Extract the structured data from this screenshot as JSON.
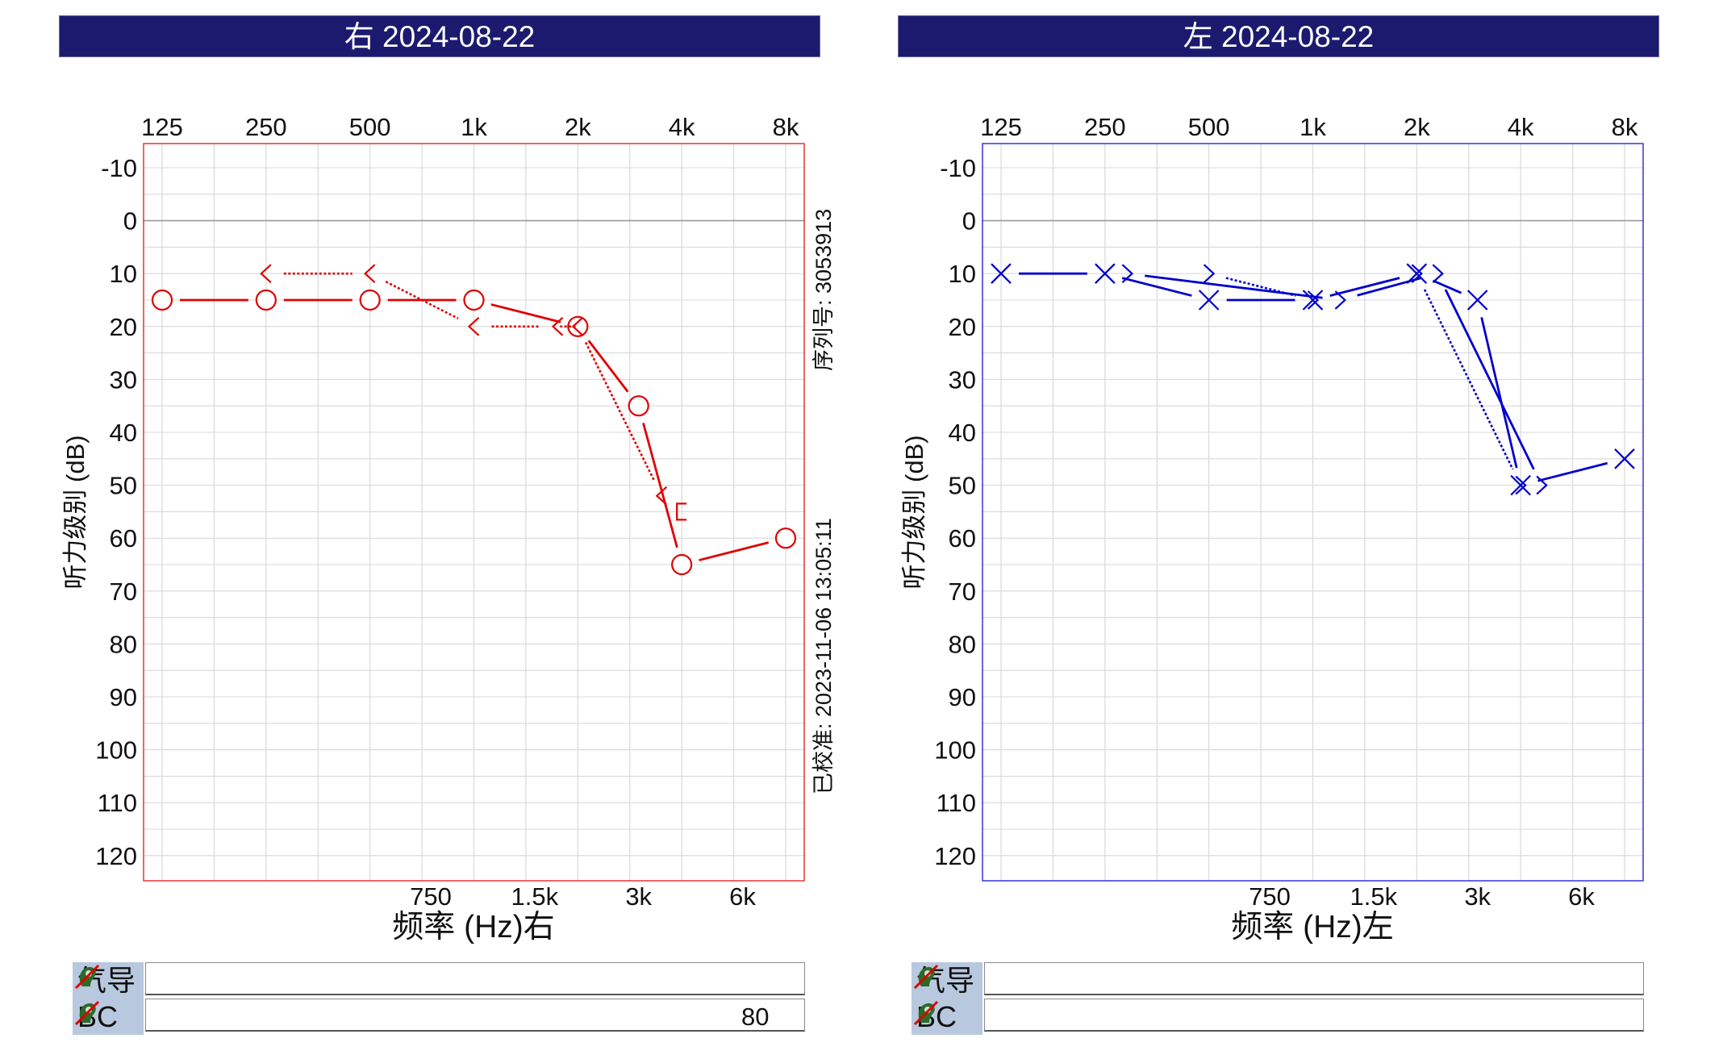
{
  "panels": [
    {
      "id": "right",
      "header": "右 2024-08-22",
      "color": "#e00000",
      "grid_color": "#d9d9d9",
      "zero_line_color": "#9a9a9a",
      "freq_top_labels": [
        "125",
        "250",
        "500",
        "1k",
        "2k",
        "4k",
        "8k"
      ],
      "freq_bottom_labels": [
        "750",
        "1.5k",
        "3k",
        "6k"
      ],
      "y_ticks": [
        "-10",
        "0",
        "10",
        "20",
        "30",
        "40",
        "50",
        "60",
        "70",
        "80",
        "90",
        "100",
        "110",
        "120"
      ],
      "ylabel": "听力级别 (dB)",
      "xlabel": "频率 (Hz)右",
      "side_text_top": "序列号: 3053913",
      "side_text_bottom": "已校准: 2023-11-06 13:05:11",
      "results": [
        {
          "label": "气导",
          "value": ""
        },
        {
          "label": "BC",
          "value": "80"
        }
      ]
    },
    {
      "id": "left",
      "header": "左 2024-08-22",
      "color": "#0000cc",
      "grid_color": "#d9d9d9",
      "zero_line_color": "#9a9a9a",
      "freq_top_labels": [
        "125",
        "250",
        "500",
        "1k",
        "2k",
        "4k",
        "8k"
      ],
      "freq_bottom_labels": [
        "750",
        "1.5k",
        "3k",
        "6k"
      ],
      "y_ticks": [
        "-10",
        "0",
        "10",
        "20",
        "30",
        "40",
        "50",
        "60",
        "70",
        "80",
        "90",
        "100",
        "110",
        "120"
      ],
      "ylabel": "听力级别 (dB)",
      "xlabel": "频率 (Hz)左",
      "side_text_top": "",
      "side_text_bottom": "",
      "results": [
        {
          "label": "气导",
          "value": ""
        },
        {
          "label": "BC",
          "value": ""
        }
      ]
    }
  ],
  "chart_data": [
    {
      "type": "line",
      "title": "右 2024-08-22",
      "xlabel": "频率 (Hz)右",
      "ylabel": "听力级别 (dB)",
      "x_scale": "log2",
      "xlim": [
        125,
        8000
      ],
      "ylim": [
        -15,
        125
      ],
      "y_inverted": true,
      "grid": true,
      "series": [
        {
          "symbol": "circle",
          "style": "solid",
          "points": [
            [
              125,
              15
            ],
            [
              250,
              15
            ],
            [
              500,
              15
            ],
            [
              1000,
              15
            ],
            [
              2000,
              20
            ],
            [
              3000,
              35
            ],
            [
              4000,
              65
            ],
            [
              8000,
              60
            ]
          ]
        },
        {
          "symbol": "bracket-left",
          "style": "dotted",
          "points": [
            [
              250,
              10
            ],
            [
              500,
              10
            ],
            [
              1000,
              20
            ],
            [
              1750,
              20
            ],
            [
              2000,
              20
            ],
            [
              3500,
              52
            ]
          ]
        },
        {
          "symbol": "bracket-square",
          "style": "none",
          "points": [
            [
              4000,
              55
            ]
          ]
        }
      ]
    },
    {
      "type": "line",
      "title": "左 2024-08-22",
      "xlabel": "频率 (Hz)左",
      "ylabel": "听力级别 (dB)",
      "x_scale": "log2",
      "xlim": [
        125,
        8000
      ],
      "ylim": [
        -15,
        125
      ],
      "y_inverted": true,
      "grid": true,
      "series": [
        {
          "symbol": "cross",
          "style": "solid",
          "points": [
            [
              125,
              10
            ],
            [
              250,
              10
            ],
            [
              500,
              15
            ],
            [
              1000,
              15
            ],
            [
              2000,
              10
            ],
            [
              3000,
              15
            ],
            [
              4000,
              50
            ],
            [
              8000,
              45
            ]
          ]
        },
        {
          "symbol": "bracket-right",
          "style": "solid",
          "points": [
            [
              290,
              10
            ],
            [
              1200,
              15
            ],
            [
              2300,
              10
            ],
            [
              4600,
              50
            ]
          ]
        },
        {
          "symbol": "bracket-right",
          "style": "dotted",
          "points": [
            [
              500,
              10
            ],
            [
              1000,
              15
            ],
            [
              2000,
              10
            ],
            [
              4000,
              50
            ]
          ]
        }
      ]
    }
  ]
}
